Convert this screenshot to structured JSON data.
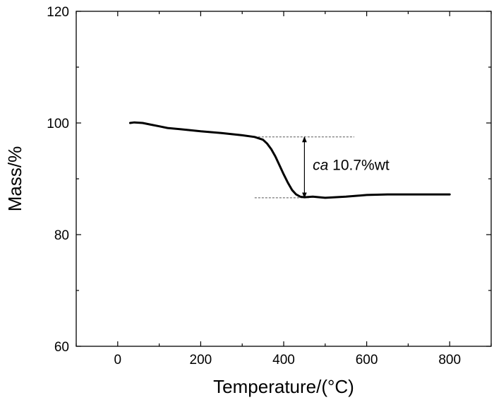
{
  "chart_data": {
    "type": "line",
    "xlabel": "Temperature/(°C)",
    "ylabel": "Mass/%",
    "xlim": [
      -100,
      900
    ],
    "ylim": [
      60,
      120
    ],
    "xticks": [
      0,
      200,
      400,
      600,
      800
    ],
    "yticks": [
      60,
      80,
      100,
      120
    ],
    "grid": false,
    "series": [
      {
        "x": [
          30,
          40,
          60,
          80,
          100,
          120,
          150,
          200,
          250,
          300,
          330,
          350,
          360,
          370,
          380,
          390,
          400,
          410,
          420,
          430,
          440,
          450,
          470,
          500,
          550,
          600,
          650,
          700,
          750,
          800
        ],
        "y": [
          100.0,
          100.1,
          100.0,
          99.7,
          99.4,
          99.1,
          98.9,
          98.5,
          98.2,
          97.8,
          97.5,
          97.0,
          96.3,
          95.3,
          94.0,
          92.4,
          90.8,
          89.3,
          88.0,
          87.2,
          86.8,
          86.7,
          86.8,
          86.6,
          86.8,
          87.1,
          87.2,
          87.2,
          87.2,
          87.2
        ],
        "color": "#000000"
      }
    ],
    "annotations": [
      {
        "type": "hline",
        "y": 97.5,
        "x_range": [
          330,
          570
        ],
        "style": "dashed"
      },
      {
        "type": "hline",
        "y": 86.6,
        "x_range": [
          330,
          460
        ],
        "style": "dashed"
      },
      {
        "type": "double-arrow",
        "x": 450,
        "y_range": [
          86.6,
          97.5
        ]
      },
      {
        "type": "text",
        "italic": "ca",
        "text": " 10.7%wt",
        "x": 470,
        "y": 92.5
      }
    ]
  }
}
